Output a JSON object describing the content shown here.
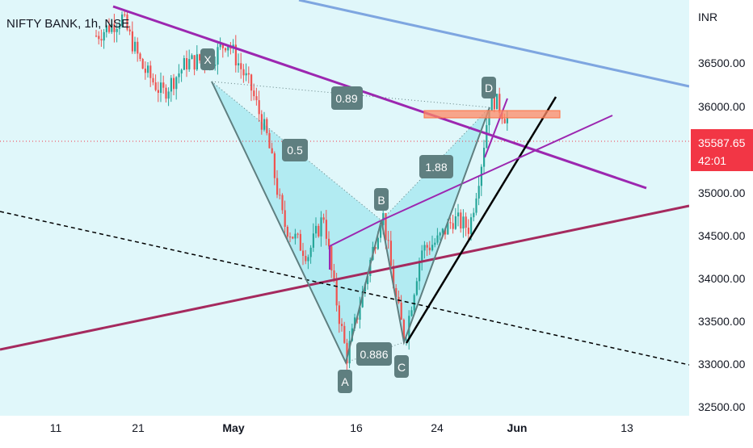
{
  "header": {
    "title": "NIFTY BANK, 1h, NSE",
    "currency": "INR"
  },
  "price_axis": {
    "ticks": [
      "36500.00",
      "36000.00",
      "35000.00",
      "34500.00",
      "34000.00",
      "33500.00",
      "33000.00",
      "32500.00"
    ]
  },
  "current_price": {
    "value": "35587.65",
    "countdown": "42:01",
    "color": "#f23645"
  },
  "time_axis": {
    "ticks": [
      "11",
      "21",
      "May",
      "16",
      "24",
      "Jun",
      "13"
    ]
  },
  "pattern": {
    "points": [
      "X",
      "A",
      "B",
      "C",
      "D"
    ],
    "ratios": [
      "0.5",
      "0.89",
      "0.886",
      "1.88"
    ],
    "fill_color": "#b2ebf2",
    "line_color": "#5f7f80"
  },
  "colors": {
    "background": "#e0f7fa",
    "up": "#26a69a",
    "down": "#ef5350",
    "trend_purple": "#9c27b0",
    "trend_maroon": "#a52a5e",
    "trend_blue": "#7ea6e0",
    "trend_black": "#000000",
    "zone": "#ff7043"
  },
  "chart_data": {
    "type": "candlestick",
    "title": "NIFTY BANK, 1h, NSE",
    "yunit": "INR",
    "ylim": [
      32350,
      37000
    ],
    "xticks": [
      "11",
      "21",
      "May",
      "16",
      "24",
      "Jun",
      "13"
    ],
    "harmonic_pattern": {
      "X": 36350,
      "A": 33000,
      "B": 34650,
      "C": 33200,
      "D": 35950,
      "XB": 0.5,
      "XD": 0.89,
      "AC": 0.886,
      "BD": 1.88
    },
    "last_price": 35587.65
  }
}
